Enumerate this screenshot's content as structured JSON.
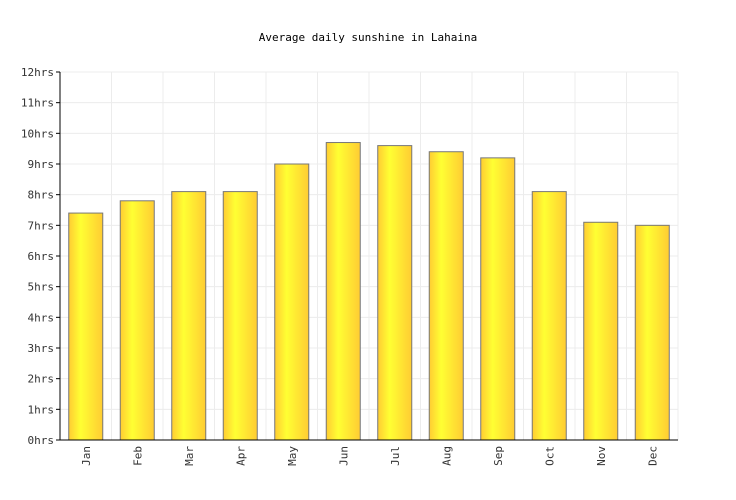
{
  "chart_data": {
    "type": "bar",
    "title": "Average daily sunshine in Lahaina",
    "xlabel": "",
    "ylabel": "",
    "categories": [
      "Jan",
      "Feb",
      "Mar",
      "Apr",
      "May",
      "Jun",
      "Jul",
      "Aug",
      "Sep",
      "Oct",
      "Nov",
      "Dec"
    ],
    "series": [
      {
        "values": [
          7.4,
          7.8,
          8.1,
          8.1,
          9.0,
          9.7,
          9.6,
          9.4,
          9.2,
          8.1,
          7.1,
          7.0
        ]
      }
    ],
    "yticks": [
      "0hrs",
      "1hrs",
      "2hrs",
      "3hrs",
      "4hrs",
      "5hrs",
      "6hrs",
      "7hrs",
      "8hrs",
      "9hrs",
      "10hrs",
      "11hrs",
      "12hrs"
    ],
    "ylim": [
      0,
      12
    ],
    "grid": true,
    "legend": "none",
    "colors": {
      "bar_light": "#ffff33",
      "bar_dark": "#ffcc33",
      "bar_border": "#777777",
      "grid": "#ececec",
      "axis": "#000000"
    }
  }
}
